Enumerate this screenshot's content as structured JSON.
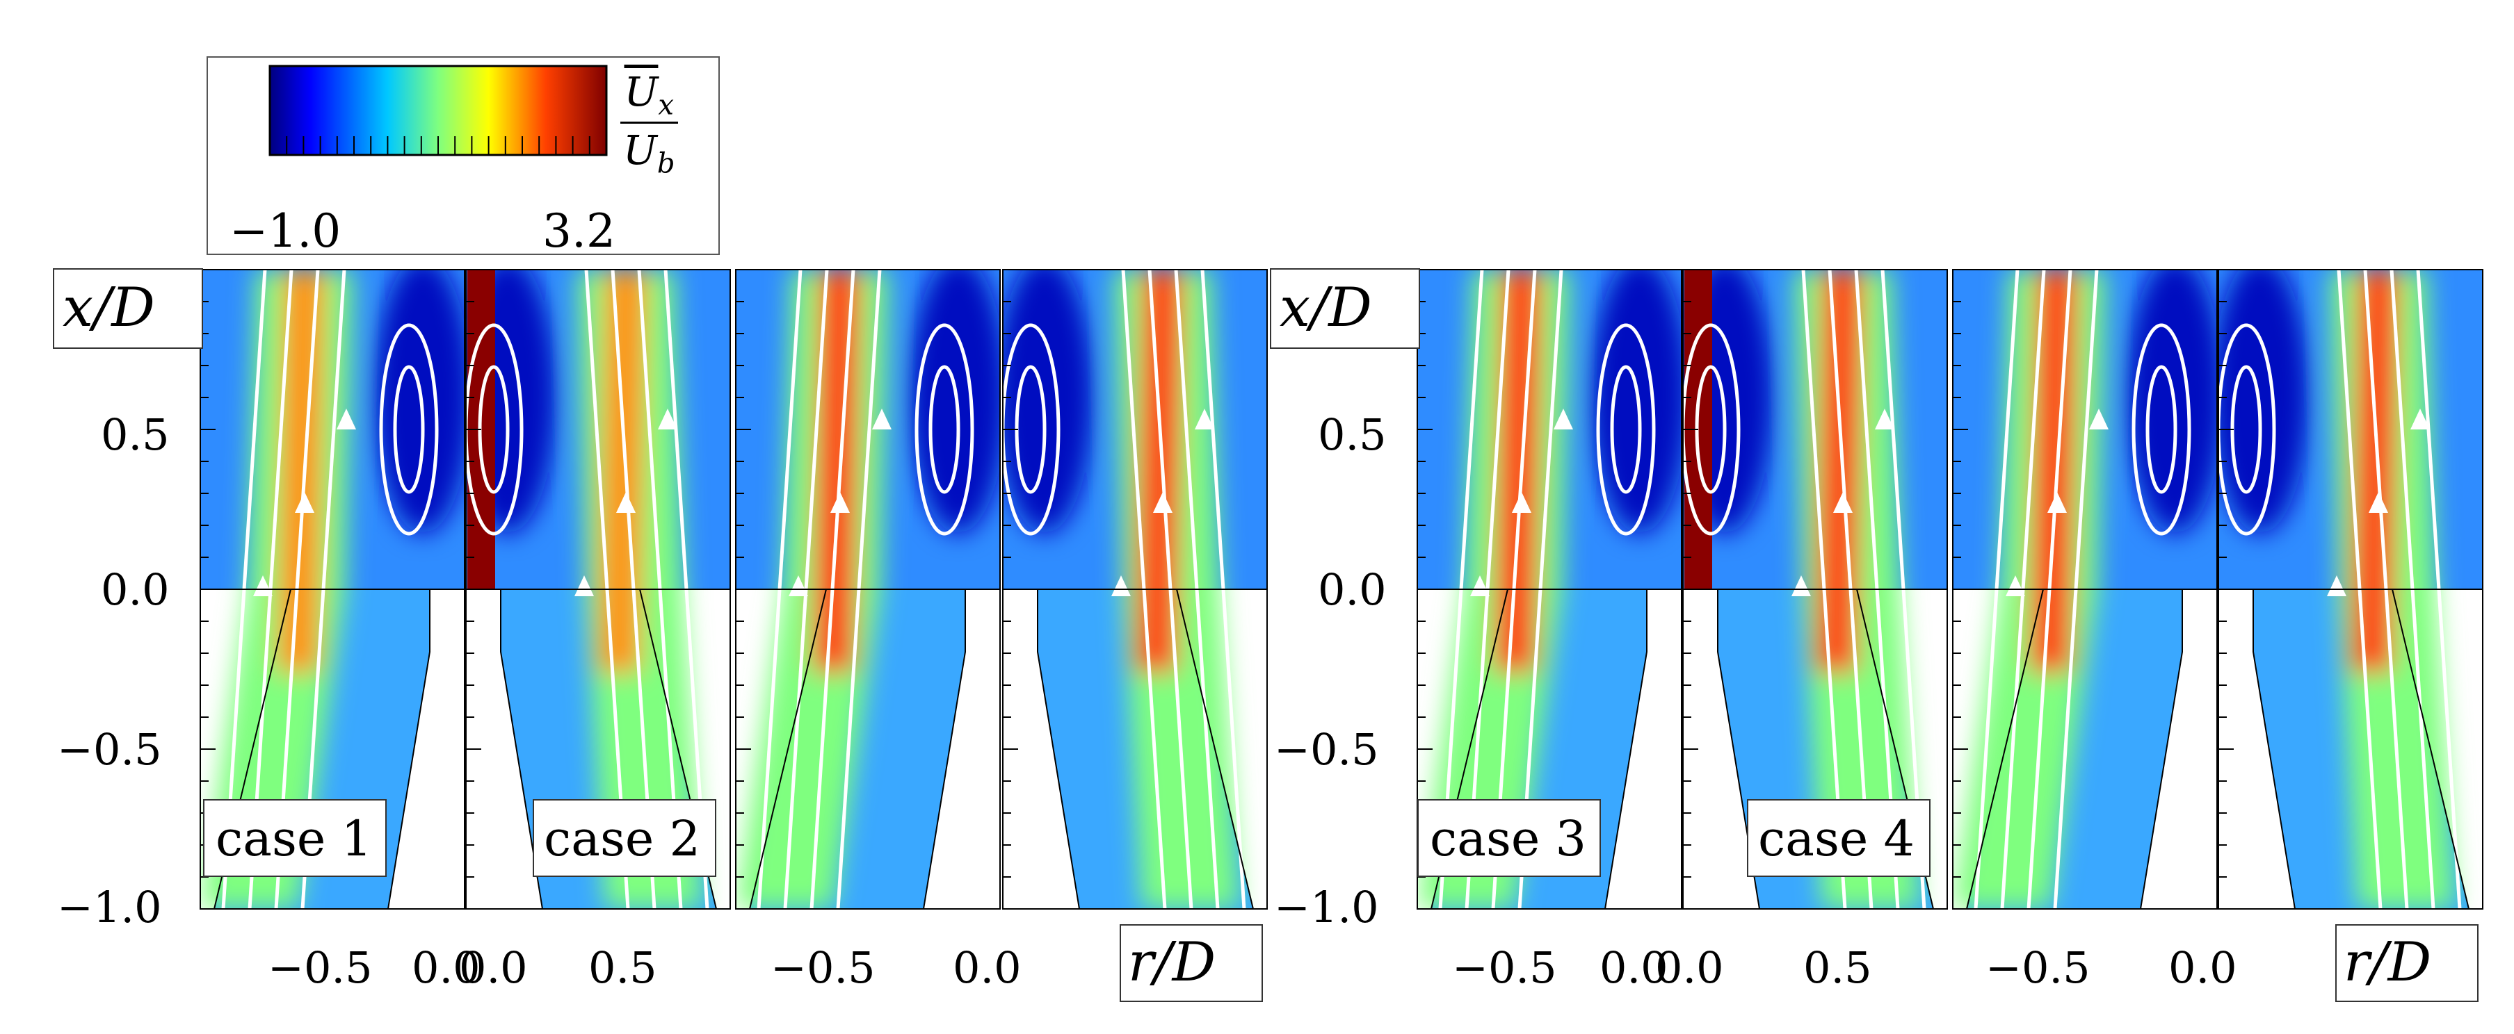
{
  "colorbar": {
    "min_label": "−1.0",
    "max_label": "3.2",
    "quantity_top": "U",
    "quantity_top_sub": "x",
    "quantity_bottom": "U",
    "quantity_bottom_sub": "b",
    "colormap": [
      "#00007f",
      "#0000ff",
      "#007fff",
      "#00ffff",
      "#7fff7f",
      "#ffff00",
      "#ff7f00",
      "#ff0000",
      "#7f0000"
    ]
  },
  "axes": {
    "y_label": "x/D",
    "x_label": "r/D",
    "y_ticks": [
      "0.5",
      "0.0",
      "−0.5",
      "−1.0"
    ],
    "x_ticks_left": [
      "−0.5",
      "0.0",
      "0.5"
    ],
    "x_ticks_right": [
      "−0.5",
      "0.0",
      "0.5"
    ],
    "x_tick_between": "0.0",
    "x_tick_end": "0.0"
  },
  "cases": {
    "c1": "case 1",
    "c2": "case 2",
    "c3": "case 3",
    "c4": "case 4"
  }
}
